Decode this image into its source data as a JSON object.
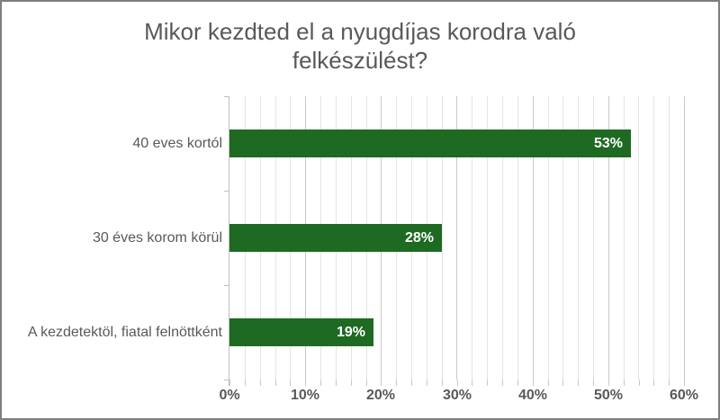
{
  "window": {
    "background": "#FFFFFF",
    "border_color": "#7F7F7F"
  },
  "chart_data": {
    "type": "bar",
    "orientation": "horizontal",
    "title": "Mikor kezdted el a nyugdíjas korodra való felkészülést?",
    "title_lines": [
      "Mikor kezdted el a nyugdíjas korodra való",
      "felkészülést?"
    ],
    "categories": [
      "40 eves kortól",
      "30 éves korom körül",
      "A kezdetektöl, fiatal felnöttként"
    ],
    "values": [
      53,
      28,
      19
    ],
    "value_labels": [
      "53%",
      "28%",
      "19%"
    ],
    "xlabel": "",
    "ylabel": "",
    "xlim": [
      0,
      60
    ],
    "major_tick": 10,
    "minor_tick": 2,
    "x_tick_labels": [
      "0%",
      "10%",
      "20%",
      "30%",
      "40%",
      "50%",
      "60%"
    ],
    "grid": "on",
    "legend": "none",
    "colors": {
      "bar": "#1E6A23",
      "title_text": "#595959",
      "axis_text": "#595959",
      "value_label_text": "#FFFFFF",
      "minor_gridline": "#E4E4E4",
      "major_gridline": "#C9C9C9",
      "axis_line": "#BFBFBF"
    }
  }
}
